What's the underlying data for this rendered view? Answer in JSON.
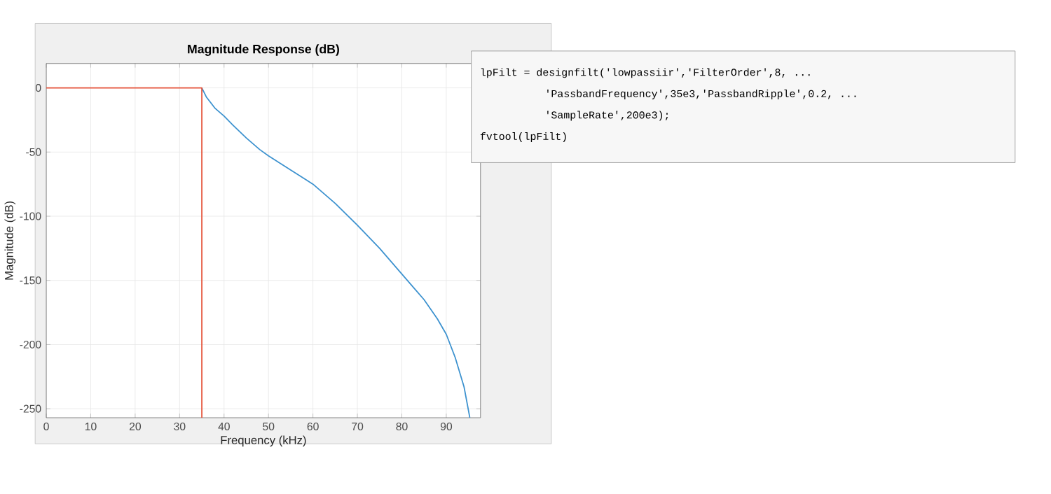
{
  "chart_data": {
    "type": "line",
    "title": "Magnitude Response (dB)",
    "xlabel": "Frequency (kHz)",
    "ylabel": "Magnitude (dB)",
    "xlim": [
      0,
      97.7
    ],
    "ylim": [
      -257,
      19
    ],
    "xticks": [
      0,
      10,
      20,
      30,
      40,
      50,
      60,
      70,
      80,
      90
    ],
    "yticks": [
      -250,
      -200,
      -150,
      -100,
      -50,
      0
    ],
    "grid": true,
    "marker": "none",
    "line_style": "solid",
    "series": [
      {
        "color": "#3d92cf",
        "x": [
          35,
          36,
          38,
          40,
          42,
          45,
          48,
          50,
          55,
          60,
          65,
          70,
          75,
          80,
          83,
          85,
          88,
          90,
          92,
          94,
          95.3
        ],
        "values": [
          0,
          -7,
          -16,
          -22,
          -29,
          -39,
          -48,
          -53,
          -64,
          -75,
          -90,
          -107,
          -125,
          -145,
          -157,
          -165,
          -180,
          -192,
          -210,
          -233,
          -257
        ]
      },
      {
        "color": "#e5533a",
        "x": [
          0,
          35,
          35
        ],
        "values": [
          0,
          0,
          -257
        ]
      }
    ],
    "annotations": [
      "lpFilt = designfilt('lowpassiir','FilterOrder',8, ...",
      "'PassbandFrequency',35e3,'PassbandRipple',0.2, ...",
      "'SampleRate',200e3);",
      "fvtool(lpFilt)"
    ]
  }
}
